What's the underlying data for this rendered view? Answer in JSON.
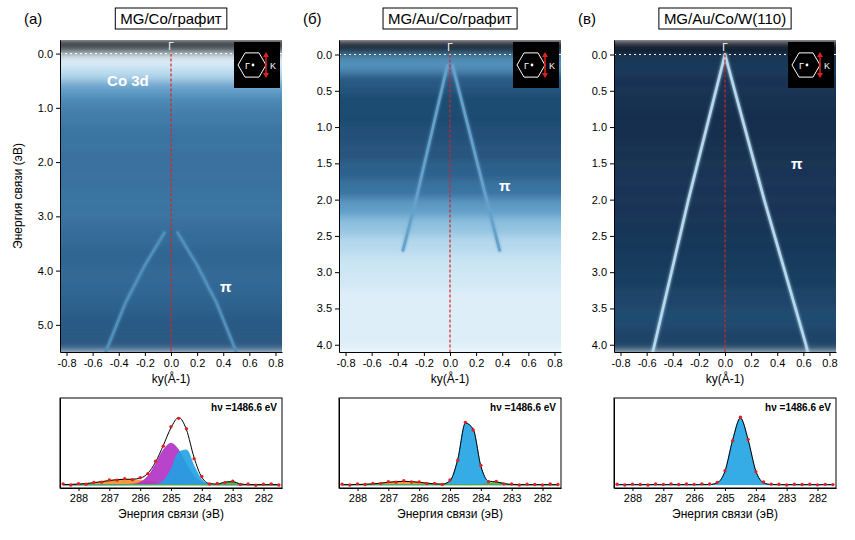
{
  "chart_data": [
    {
      "type": "heatmap",
      "panel": "(а)",
      "title": "MG/Co/графит",
      "x_label": "ky(Å-1)",
      "y_label": "Энергия связи (эВ)",
      "xlim": [
        -0.85,
        0.85
      ],
      "xticks": [
        -0.8,
        -0.6,
        -0.4,
        -0.2,
        {
          "value": 0,
          "label": "0.0"
        },
        0.2,
        0.4,
        0.6,
        0.8
      ],
      "ylim": [
        -0.25,
        5.5
      ],
      "yticks": [
        {
          "value": 0,
          "label": "0.0"
        },
        {
          "value": 1,
          "label": "1.0"
        },
        {
          "value": 2,
          "label": "2.0"
        },
        {
          "value": 3,
          "label": "3.0"
        },
        {
          "value": 4,
          "label": "4.0"
        },
        {
          "value": 5,
          "label": "5.0"
        }
      ],
      "energy_bins": [
        -0.25,
        0,
        0.25,
        0.5,
        0.75,
        1,
        1.25,
        1.5,
        1.75,
        2,
        2.25,
        2.5,
        2.75,
        3,
        3.25,
        3.5,
        3.75,
        4,
        4.25,
        4.5,
        4.75,
        5,
        5.25,
        5.5
      ],
      "intensity": [
        0.03,
        0.95,
        0.85,
        0.62,
        0.52,
        0.48,
        0.46,
        0.45,
        0.44,
        0.44,
        0.44,
        0.45,
        0.45,
        0.44,
        0.42,
        0.4,
        0.4,
        0.41,
        0.4,
        0.38,
        0.36,
        0.35,
        0.34
      ],
      "intensity_range": [
        0,
        1
      ],
      "bands": [
        {
          "k": [
            -0.05,
            -0.2,
            -0.35,
            -0.5
          ],
          "energy": [
            3.3,
            3.9,
            4.6,
            5.5
          ]
        },
        {
          "k": [
            0.05,
            0.2,
            0.35,
            0.5
          ],
          "energy": [
            3.3,
            3.9,
            4.6,
            5.5
          ]
        }
      ],
      "band_intensity": 0.55,
      "guides": {
        "k": 0,
        "energy": 0
      },
      "annotations": [
        {
          "text": "Γ",
          "k": 0,
          "energy": -0.125
        },
        {
          "text": "Co 3d",
          "k": -0.33,
          "energy": 0.5
        },
        {
          "text": "π",
          "k": 0.42,
          "energy": 4.3
        }
      ],
      "inset": {
        "center": "Γ",
        "corner": "K"
      }
    },
    {
      "type": "heatmap",
      "panel": "(б)",
      "title": "MG/Au/Co/графит",
      "x_label": "ky(Å-1)",
      "xlim": [
        -0.85,
        0.85
      ],
      "xticks": [
        -0.8,
        -0.6,
        -0.4,
        -0.2,
        {
          "value": 0,
          "label": "0.0"
        },
        0.2,
        0.4,
        0.6,
        0.8
      ],
      "ylim": [
        -0.2,
        4.1
      ],
      "yticks": [
        {
          "value": 0,
          "label": "0.0"
        },
        0.5,
        {
          "value": 1,
          "label": "1.0"
        },
        1.5,
        {
          "value": 2,
          "label": "2.0"
        },
        2.5,
        {
          "value": 3,
          "label": "3.0"
        },
        3.5,
        {
          "value": 4,
          "label": "4.0"
        }
      ],
      "energy_bins": [
        -0.2,
        0,
        0.25,
        0.5,
        0.75,
        1,
        1.25,
        1.5,
        1.75,
        2,
        2.25,
        2.5,
        2.75,
        3,
        3.25,
        3.5,
        3.75,
        4,
        4.1
      ],
      "intensity": [
        0.03,
        0.55,
        0.35,
        0.3,
        0.3,
        0.32,
        0.34,
        0.38,
        0.45,
        0.6,
        0.75,
        0.85,
        0.9,
        0.92,
        0.95,
        0.95,
        0.95,
        0.95
      ],
      "intensity_range": [
        0,
        1
      ],
      "bands": [
        {
          "k": [
            -0.02,
            -0.13,
            -0.26,
            -0.36
          ],
          "energy": [
            0.15,
            1,
            2,
            2.7
          ]
        },
        {
          "k": [
            0.02,
            0.14,
            0.28,
            0.38
          ],
          "energy": [
            0.15,
            1,
            2,
            2.7
          ]
        }
      ],
      "band_intensity": 0.62,
      "guides": {
        "k": 0,
        "energy": 0
      },
      "annotations": [
        {
          "text": "Γ",
          "k": 0,
          "energy": -0.1
        },
        {
          "text": "π",
          "k": 0.42,
          "energy": 1.8
        }
      ],
      "inset": {
        "center": "Γ",
        "corner": "K"
      }
    },
    {
      "type": "heatmap",
      "panel": "(в)",
      "title": "MG/Au/Co/W(110)",
      "x_label": "ky(Å-1)",
      "xlim": [
        -0.85,
        0.85
      ],
      "xticks": [
        -0.8,
        -0.6,
        -0.4,
        -0.2,
        {
          "value": 0,
          "label": "0.0"
        },
        0.2,
        0.4,
        0.6,
        0.8
      ],
      "ylim": [
        -0.2,
        4.1
      ],
      "yticks": [
        {
          "value": 0,
          "label": "0.0"
        },
        0.5,
        {
          "value": 1,
          "label": "1.0"
        },
        1.5,
        {
          "value": 2,
          "label": "2.0"
        },
        2.5,
        {
          "value": 3,
          "label": "3.0"
        },
        3.5,
        {
          "value": 4,
          "label": "4.0"
        }
      ],
      "energy_bins": [
        -0.2,
        0,
        0.25,
        0.5,
        0.75,
        1,
        1.25,
        1.5,
        1.75,
        2,
        2.25,
        2.5,
        2.75,
        3,
        3.25,
        3.5,
        3.75,
        4,
        4.1
      ],
      "intensity": [
        0.03,
        0.22,
        0.2,
        0.19,
        0.18,
        0.18,
        0.19,
        0.2,
        0.2,
        0.2,
        0.21,
        0.22,
        0.23,
        0.24,
        0.27,
        0.29,
        0.27,
        0.24
      ],
      "intensity_range": [
        0,
        1
      ],
      "bands": [
        {
          "k": [
            0,
            -0.14,
            -0.28,
            -0.41,
            -0.54,
            -0.56
          ],
          "energy": [
            0,
            1,
            2,
            3,
            4,
            4.15
          ]
        },
        {
          "k": [
            0,
            0.15,
            0.3,
            0.46,
            0.62,
            0.64
          ],
          "energy": [
            0,
            1,
            2,
            3,
            4,
            4.15
          ]
        }
      ],
      "band_intensity": 0.85,
      "guides": {
        "k": 0,
        "energy": 0
      },
      "annotations": [
        {
          "text": "Γ",
          "k": 0,
          "energy": -0.1
        },
        {
          "text": "π",
          "k": 0.55,
          "energy": 1.5
        }
      ],
      "inset": {
        "center": "Γ",
        "corner": "K"
      }
    },
    {
      "type": "line",
      "x_label": "Энергия связи (эВ)",
      "x": [
        288.5,
        288.25,
        288,
        287.75,
        287.5,
        287.25,
        287,
        286.75,
        286.5,
        286.25,
        286,
        285.75,
        285.5,
        285.25,
        285,
        284.75,
        284.5,
        284.25,
        284,
        283.75,
        283.5,
        283.25,
        283,
        282.75,
        282.5,
        282.25,
        282,
        281.75,
        281.5
      ],
      "xlim": [
        288.6,
        281.4
      ],
      "xticks": [
        288,
        287,
        286,
        285,
        284,
        283,
        282
      ],
      "ylim": [
        -0.05,
        1.3
      ],
      "yticks": [],
      "tick_labels": "x",
      "annotations": [
        {
          "text": "hν =1486.6 eV"
        }
      ],
      "series": [
        {
          "type": "area",
          "color": "#f0902a",
          "values": [
            0,
            0.004,
            0.008,
            0.016,
            0.029,
            0.045,
            0.062,
            0.075,
            0.08,
            0.075,
            0.062,
            0.045,
            0.029,
            0.016,
            0.008,
            0.004,
            0.001,
            0,
            0,
            0,
            0,
            0,
            0,
            0,
            0,
            0,
            0,
            0,
            0
          ]
        },
        {
          "type": "area",
          "color": "#b12fc4",
          "values": [
            0,
            0,
            0,
            0,
            0,
            0,
            0,
            0,
            0.001,
            0.007,
            0.036,
            0.126,
            0.305,
            0.519,
            0.62,
            0.519,
            0.305,
            0.126,
            0.036,
            0.007,
            0.001,
            0,
            0,
            0,
            0,
            0,
            0,
            0,
            0
          ]
        },
        {
          "type": "area",
          "color": "#1fa3e3",
          "values": [
            0,
            0,
            0,
            0,
            0,
            0,
            0,
            0,
            0,
            0,
            0,
            0,
            0.006,
            0.053,
            0.226,
            0.485,
            0.52,
            0.278,
            0.074,
            0.01,
            0.001,
            0,
            0,
            0,
            0,
            0,
            0,
            0,
            0
          ]
        },
        {
          "type": "area",
          "color": "#3fb34a",
          "values": [
            0,
            0,
            0,
            0,
            0,
            0,
            0,
            0,
            0,
            0,
            0,
            0,
            0,
            0,
            0,
            0,
            0,
            0,
            0,
            0,
            0.007,
            0.038,
            0.044,
            0.011,
            0.001,
            0,
            0,
            0,
            0
          ]
        },
        {
          "type": "line",
          "color": "#000000",
          "line_style": "solid",
          "values": [
            0,
            0.004,
            0.008,
            0.016,
            0.029,
            0.045,
            0.062,
            0.075,
            0.081,
            0.082,
            0.098,
            0.171,
            0.34,
            0.588,
            0.854,
            1.008,
            0.826,
            0.404,
            0.11,
            0.017,
            0.009,
            0.038,
            0.044,
            0.011,
            0.001,
            0,
            0,
            0,
            0
          ]
        },
        {
          "type": "scatter",
          "color": "#e02020",
          "marker": "circle",
          "values": [
            0.012,
            -0.006,
            0.015,
            0.008,
            0.034,
            0.038,
            0.07,
            0.068,
            0.09,
            0.075,
            0.105,
            0.165,
            0.352,
            0.578,
            0.87,
            0.995,
            0.84,
            0.39,
            0.122,
            0.01,
            0.018,
            0.03,
            0.052,
            0.004,
            0.01,
            -0.008,
            0.006,
            0.012,
            -0.004
          ]
        }
      ]
    },
    {
      "type": "line",
      "x_label": "Энергия связи (эВ)",
      "x": [
        288.5,
        288.25,
        288,
        287.75,
        287.5,
        287.25,
        287,
        286.75,
        286.5,
        286.25,
        286,
        285.75,
        285.5,
        285.25,
        285,
        284.75,
        284.5,
        284.25,
        284,
        283.75,
        283.5,
        283.25,
        283,
        282.75,
        282.5,
        282.25,
        282,
        281.75,
        281.5
      ],
      "xlim": [
        288.6,
        281.4
      ],
      "xticks": [
        288,
        287,
        286,
        285,
        284,
        283,
        282
      ],
      "ylim": [
        -0.05,
        1.3
      ],
      "yticks": [],
      "tick_labels": "x",
      "annotations": [
        {
          "text": "hν =1486.6 eV"
        }
      ],
      "series": [
        {
          "type": "area",
          "color": "#f0902a",
          "values": [
            0,
            0.001,
            0.002,
            0.006,
            0.012,
            0.023,
            0.035,
            0.046,
            0.05,
            0.046,
            0.035,
            0.023,
            0.012,
            0.006,
            0.002,
            0.001,
            0,
            0,
            0,
            0,
            0,
            0,
            0,
            0,
            0,
            0,
            0,
            0,
            0
          ]
        },
        {
          "type": "area",
          "color": "#1fa3e3",
          "values": [
            0,
            0,
            0,
            0,
            0,
            0,
            0,
            0,
            0,
            0,
            0,
            0,
            0,
            0.003,
            0.056,
            0.375,
            0.923,
            0.835,
            0.278,
            0.034,
            0.002,
            0,
            0,
            0,
            0,
            0,
            0,
            0,
            0
          ]
        },
        {
          "type": "area",
          "color": "#3fb34a",
          "values": [
            0,
            0,
            0,
            0,
            0,
            0,
            0,
            0,
            0,
            0,
            0,
            0,
            0,
            0,
            0,
            0,
            0,
            0,
            0.002,
            0.018,
            0.04,
            0.018,
            0.002,
            0,
            0,
            0,
            0,
            0,
            0
          ]
        },
        {
          "type": "line",
          "color": "#000000",
          "line_style": "solid",
          "values": [
            0,
            0.001,
            0.002,
            0.006,
            0.012,
            0.023,
            0.035,
            0.046,
            0.05,
            0.046,
            0.035,
            0.023,
            0.012,
            0.009,
            0.058,
            0.376,
            0.923,
            0.835,
            0.28,
            0.052,
            0.042,
            0.018,
            0.002,
            0,
            0,
            0,
            0,
            0,
            0
          ]
        },
        {
          "type": "scatter",
          "color": "#e02020",
          "marker": "circle",
          "values": [
            0.008,
            -0.005,
            0.012,
            0.002,
            0.02,
            0.016,
            0.045,
            0.038,
            0.058,
            0.04,
            0.042,
            0.015,
            0.02,
            0.004,
            0.07,
            0.365,
            0.935,
            0.82,
            0.29,
            0.045,
            0.05,
            0.012,
            0.01,
            -0.006,
            0.008,
            0.003,
            -0.004,
            0.009,
            0.002
          ]
        }
      ]
    },
    {
      "type": "line",
      "x_label": "Энергия связи (эВ)",
      "x": [
        288.5,
        288.25,
        288,
        287.75,
        287.5,
        287.25,
        287,
        286.75,
        286.5,
        286.25,
        286,
        285.75,
        285.5,
        285.25,
        285,
        284.75,
        284.5,
        284.25,
        284,
        283.75,
        283.5,
        283.25,
        283,
        282.75,
        282.5,
        282.25,
        282,
        281.75,
        281.5
      ],
      "xlim": [
        288.6,
        281.4
      ],
      "xticks": [
        288,
        287,
        286,
        285,
        284,
        283,
        282
      ],
      "ylim": [
        -0.05,
        1.3
      ],
      "yticks": [],
      "tick_labels": "x",
      "annotations": [
        {
          "text": "hν =1486.6 eV"
        }
      ],
      "series": [
        {
          "type": "area",
          "color": "#1fa3e3",
          "values": [
            0,
            0,
            0,
            0,
            0,
            0,
            0,
            0,
            0,
            0,
            0,
            0,
            0.002,
            0.028,
            0.203,
            0.672,
            1,
            0.672,
            0.203,
            0.028,
            0.002,
            0,
            0,
            0,
            0,
            0,
            0,
            0,
            0
          ]
        },
        {
          "type": "line",
          "color": "#000000",
          "line_style": "solid",
          "values": [
            0,
            0,
            0,
            0,
            0,
            0,
            0,
            0,
            0,
            0,
            0,
            0,
            0.002,
            0.028,
            0.203,
            0.672,
            1,
            0.672,
            0.203,
            0.028,
            0.002,
            0,
            0,
            0,
            0,
            0,
            0,
            0,
            0
          ]
        },
        {
          "type": "scatter",
          "color": "#e02020",
          "marker": "circle",
          "values": [
            0.006,
            -0.004,
            0.008,
            0.003,
            -0.006,
            0.01,
            0.004,
            0.012,
            0.002,
            0.009,
            0.005,
            0.012,
            0.01,
            0.035,
            0.21,
            0.66,
            1.012,
            0.68,
            0.195,
            0.04,
            0.008,
            0.006,
            -0.005,
            0.007,
            0.002,
            0.006,
            -0.003,
            0.005,
            0.001
          ]
        }
      ]
    }
  ]
}
